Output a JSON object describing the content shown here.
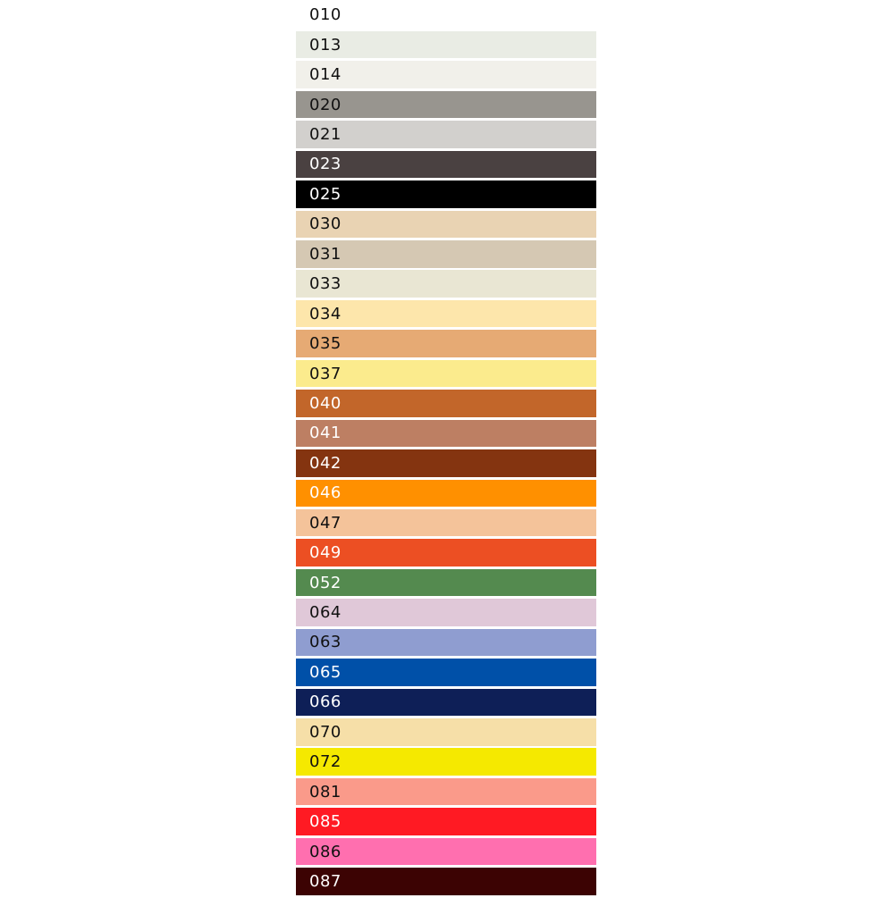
{
  "swatches": [
    {
      "code": "010",
      "color": "#ffffff",
      "text": "#111111"
    },
    {
      "code": "013",
      "color": "#e9ece4",
      "text": "#111111"
    },
    {
      "code": "014",
      "color": "#f1f0ea",
      "text": "#111111"
    },
    {
      "code": "020",
      "color": "#98958f",
      "text": "#111111"
    },
    {
      "code": "021",
      "color": "#d2d0cd",
      "text": "#111111"
    },
    {
      "code": "023",
      "color": "#4a4141",
      "text": "#ffffff"
    },
    {
      "code": "025",
      "color": "#000000",
      "text": "#ffffff"
    },
    {
      "code": "030",
      "color": "#e9d3b3",
      "text": "#111111"
    },
    {
      "code": "031",
      "color": "#d5c8b3",
      "text": "#111111"
    },
    {
      "code": "033",
      "color": "#e9e6d3",
      "text": "#111111"
    },
    {
      "code": "034",
      "color": "#fde6ab",
      "text": "#111111"
    },
    {
      "code": "035",
      "color": "#e6aa74",
      "text": "#111111"
    },
    {
      "code": "037",
      "color": "#fbeb8d",
      "text": "#111111"
    },
    {
      "code": "040",
      "color": "#c2662a",
      "text": "#ffffff"
    },
    {
      "code": "041",
      "color": "#bd7f63",
      "text": "#ffffff"
    },
    {
      "code": "042",
      "color": "#843410",
      "text": "#ffffff"
    },
    {
      "code": "046",
      "color": "#ff9000",
      "text": "#ffffff"
    },
    {
      "code": "047",
      "color": "#f4c39a",
      "text": "#111111"
    },
    {
      "code": "049",
      "color": "#ec4f23",
      "text": "#ffffff"
    },
    {
      "code": "052",
      "color": "#548a4f",
      "text": "#ffffff"
    },
    {
      "code": "064",
      "color": "#e0c8d8",
      "text": "#111111"
    },
    {
      "code": "063",
      "color": "#8f9dd0",
      "text": "#111111"
    },
    {
      "code": "065",
      "color": "#0050a8",
      "text": "#ffffff"
    },
    {
      "code": "066",
      "color": "#0e1f57",
      "text": "#ffffff"
    },
    {
      "code": "070",
      "color": "#f6dfa8",
      "text": "#111111"
    },
    {
      "code": "072",
      "color": "#f5e900",
      "text": "#111111"
    },
    {
      "code": "081",
      "color": "#fa9a8a",
      "text": "#111111"
    },
    {
      "code": "085",
      "color": "#ff1a23",
      "text": "#ffffff"
    },
    {
      "code": "086",
      "color": "#ff6faf",
      "text": "#111111"
    },
    {
      "code": "087",
      "color": "#3c0303",
      "text": "#ffffff"
    }
  ]
}
